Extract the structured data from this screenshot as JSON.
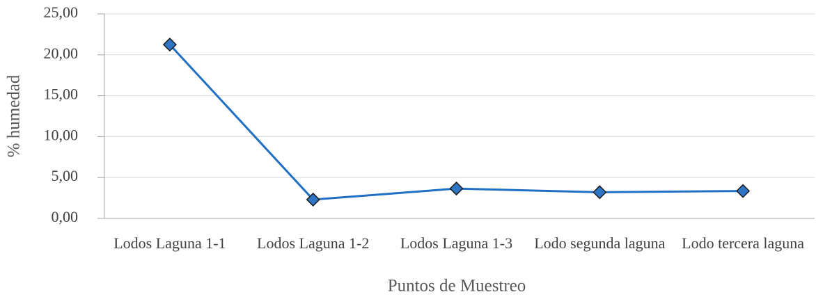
{
  "chart_data": {
    "type": "line",
    "categories": [
      "Lodos Laguna 1-1",
      "Lodos Laguna 1-2",
      "Lodos Laguna 1-3",
      "Lodo segunda laguna",
      "Lodo tercera laguna"
    ],
    "values": [
      21.25,
      2.3,
      3.65,
      3.2,
      3.35
    ],
    "color": "#1f6fc5",
    "marker_color": "#2e75c6",
    "ylabel": "% humedad",
    "xlabel": "Puntos de Muestreo",
    "ylim": [
      0,
      25
    ],
    "yticks": [
      {
        "value": 0,
        "label": "0,00"
      },
      {
        "value": 5,
        "label": "5,00"
      },
      {
        "value": 10,
        "label": "10,00"
      },
      {
        "value": 15,
        "label": "15,00"
      },
      {
        "value": 20,
        "label": "20,00"
      },
      {
        "value": 25,
        "label": "25,00"
      }
    ],
    "grid": true
  }
}
